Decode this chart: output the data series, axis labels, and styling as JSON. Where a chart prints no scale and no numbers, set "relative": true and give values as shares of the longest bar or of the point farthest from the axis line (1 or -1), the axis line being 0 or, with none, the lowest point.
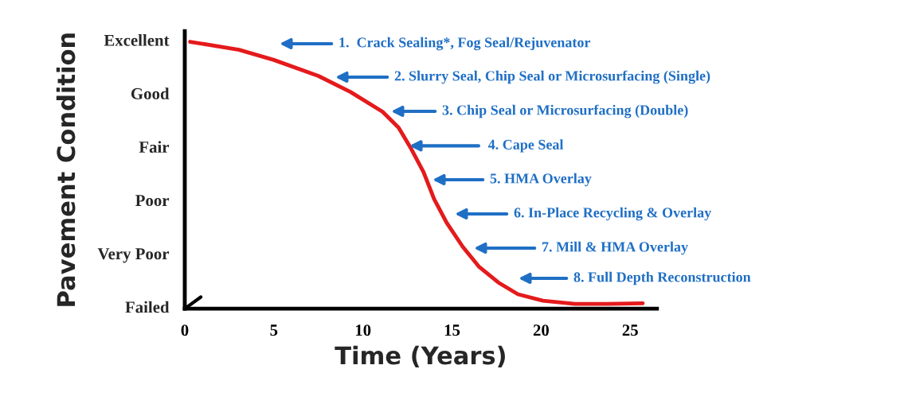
{
  "chart_data": {
    "type": "line",
    "xlabel": "Time (Years)",
    "ylabel": "Pavement Condition",
    "x": [
      0.3,
      3.05,
      5,
      7.5,
      9.3,
      11.1,
      12.0,
      12.7,
      13.4,
      14.0,
      14.7,
      15.6,
      16.5,
      17.6,
      18.7,
      20.1,
      21.9,
      23.7,
      25.7
    ],
    "relative": true,
    "series": [
      {
        "color": "#e41a1c",
        "values": [
          1.0,
          0.97,
          0.932,
          0.872,
          0.812,
          0.738,
          0.678,
          0.6,
          0.512,
          0.41,
          0.322,
          0.232,
          0.158,
          0.098,
          0.054,
          0.03,
          0.018,
          0.018,
          0.02
        ]
      }
    ],
    "xlim": [
      0,
      26.5
    ],
    "xticks": [
      0,
      5,
      10,
      15,
      20,
      25
    ],
    "grid": false,
    "legend": false,
    "marker": "none",
    "line_style": "solid",
    "annotations": [
      "1.  Crack Sealing*, Fog Seal/Rejuvenator",
      "2. Slurry Seal, Chip Seal or Microsurfacing (Single)",
      "3. Chip Seal or Microsurfacing (Double)",
      {
        "text": "4. Cape Seal",
        "x": 12.6,
        "y": 0.61
      },
      "5. HMA Overlay",
      "6. In-Place Recycling & Overlay",
      "7. Mill & HMA Overlay",
      "8. Full Depth Reconstruction",
      "Excellent",
      "Good",
      "Fair",
      "Poor",
      "Very Poor",
      "Failed"
    ]
  }
}
